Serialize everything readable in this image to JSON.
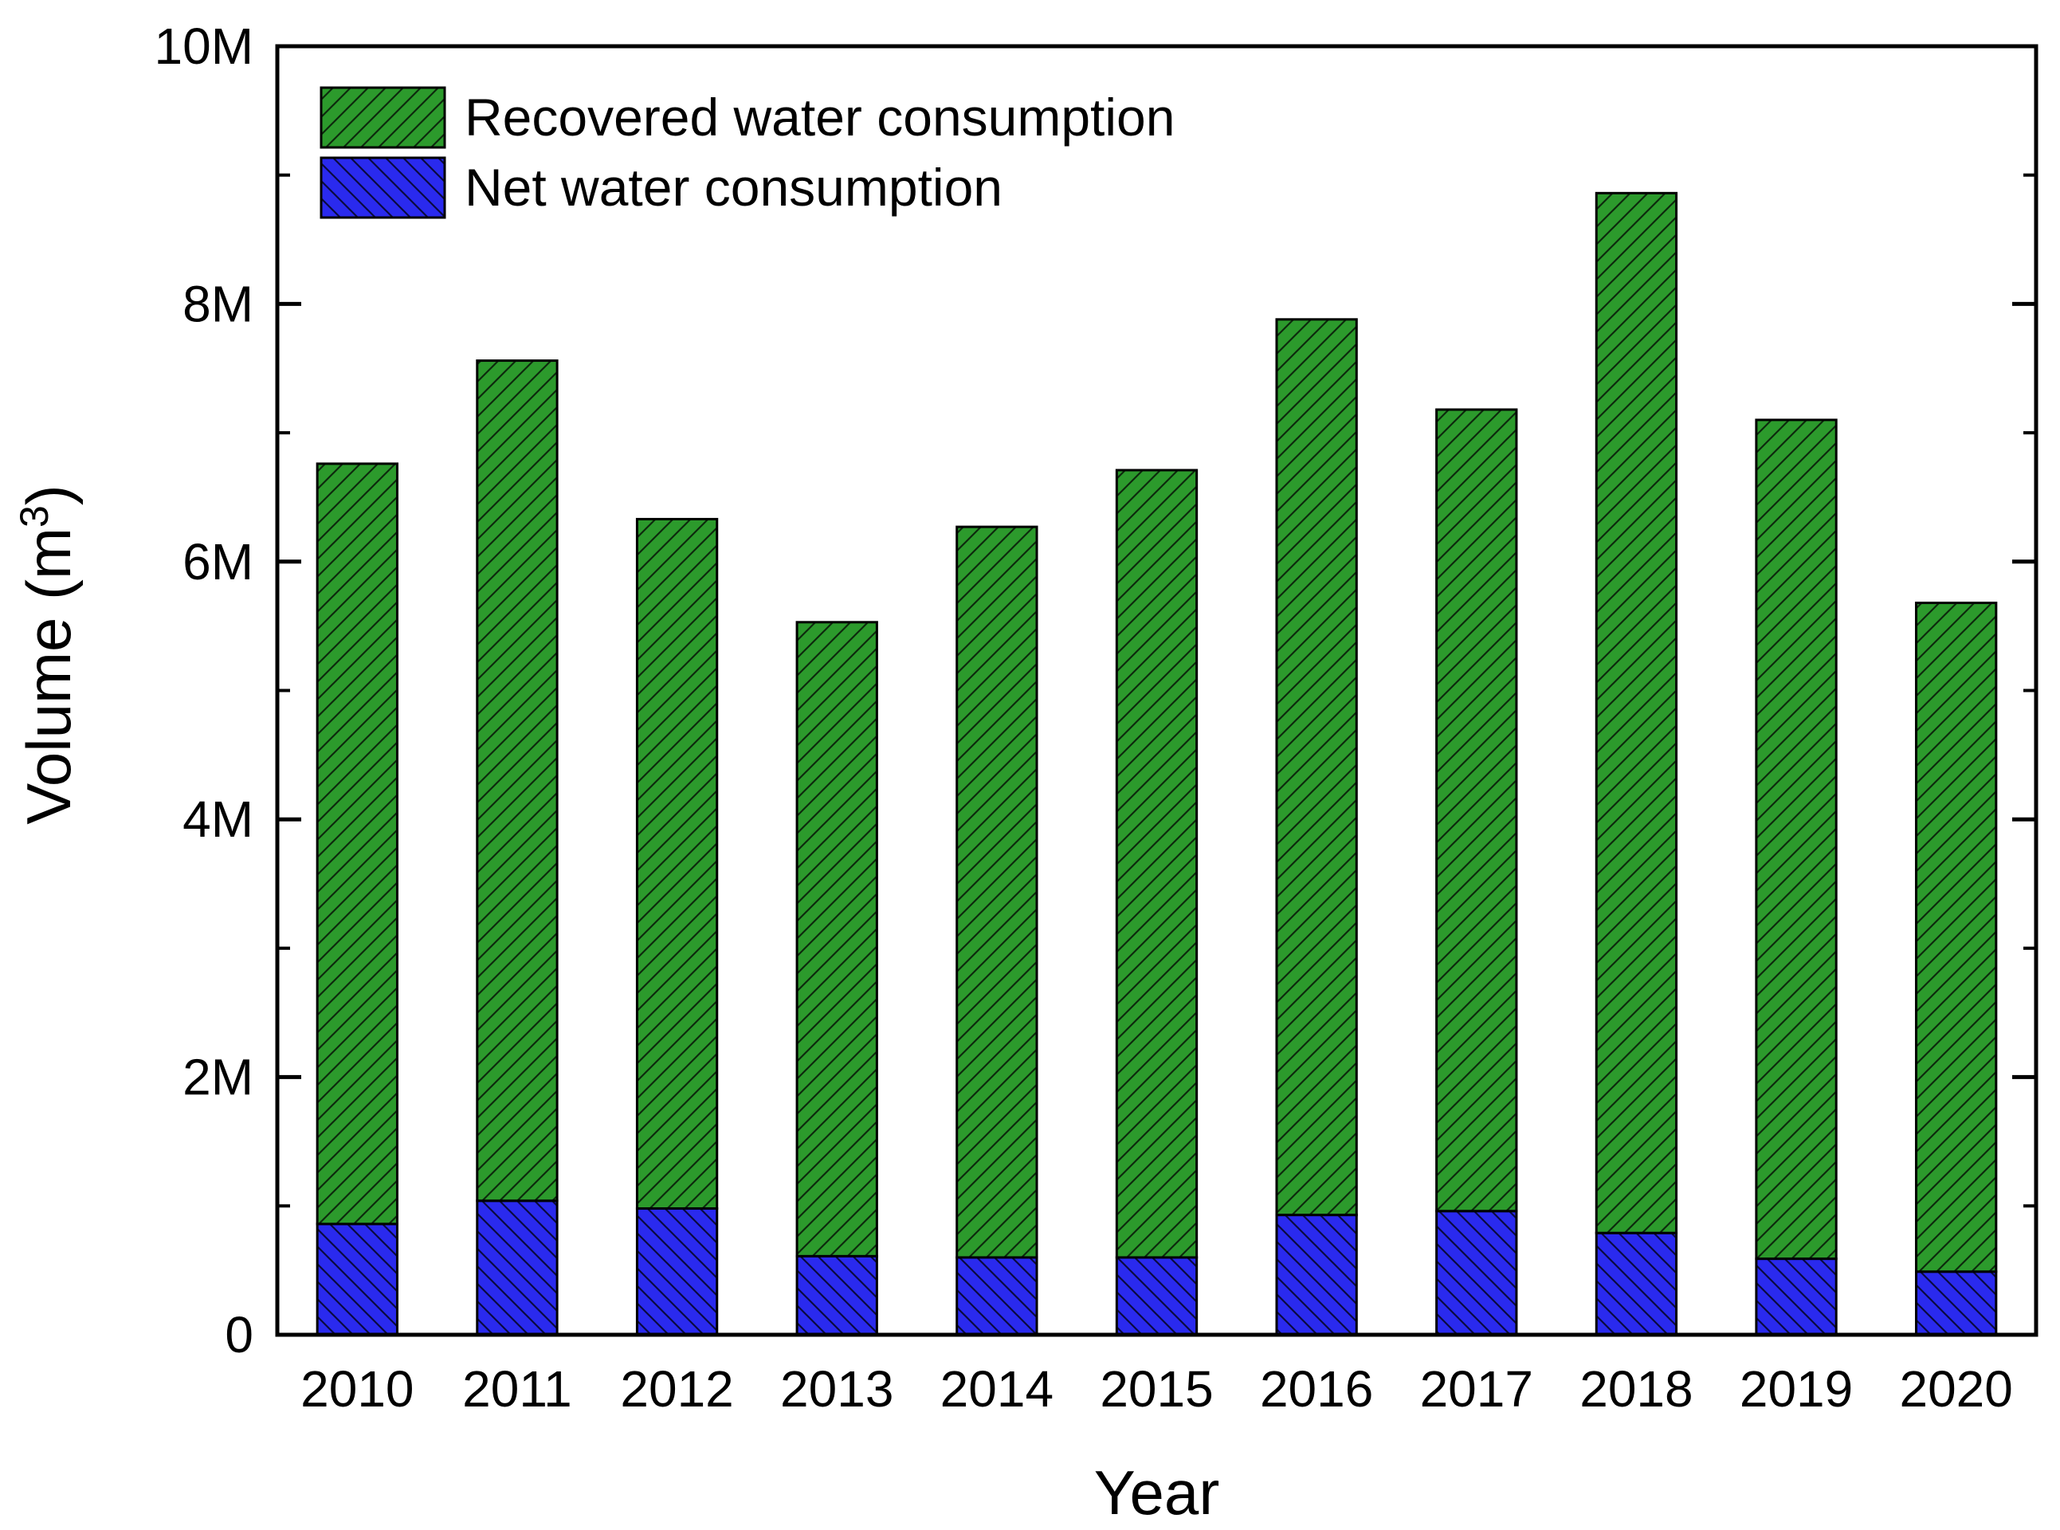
{
  "chart_data": {
    "type": "bar",
    "stacked": true,
    "title": "",
    "xlabel": "Year",
    "ylabel": {
      "main": "Volume (m",
      "superscript": "3",
      "close": ")"
    },
    "ylim": [
      0,
      10000000
    ],
    "yticks": [
      {
        "value": 0,
        "label": "0"
      },
      {
        "value": 2000000,
        "label": "2M"
      },
      {
        "value": 4000000,
        "label": "4M"
      },
      {
        "value": 6000000,
        "label": "6M"
      },
      {
        "value": 8000000,
        "label": "8M"
      },
      {
        "value": 10000000,
        "label": "10M"
      }
    ],
    "categories": [
      "2010",
      "2011",
      "2012",
      "2013",
      "2014",
      "2015",
      "2016",
      "2017",
      "2018",
      "2019",
      "2020"
    ],
    "series": [
      {
        "name": "Net water consumption",
        "color": "#2a2aee",
        "hatch": "backslash",
        "values": [
          860000,
          1040000,
          980000,
          610000,
          600000,
          600000,
          930000,
          960000,
          790000,
          590000,
          490000
        ]
      },
      {
        "name": "Recovered water consumption",
        "color": "#2c9a2c",
        "hatch": "slash",
        "values": [
          5900000,
          6520000,
          5350000,
          4920000,
          5670000,
          6110000,
          6950000,
          6220000,
          8070000,
          6510000,
          5190000
        ]
      }
    ],
    "legend": {
      "placement": "top-left",
      "entries": [
        "Recovered water consumption",
        "Net water consumption"
      ]
    },
    "grid": false
  }
}
